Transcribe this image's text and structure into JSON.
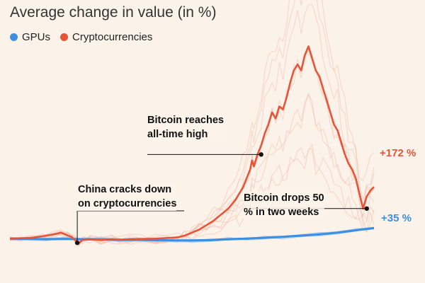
{
  "colors": {
    "gpus": "#3d8fe0",
    "crypto": "#e8543a",
    "crypto_bg": "#f3b8a6",
    "gpu_bg": "#a9c9ea"
  },
  "chart_data": {
    "type": "line",
    "title": "Average change in value (in %)",
    "legend": [
      {
        "name": "GPUs"
      },
      {
        "name": "Cryptocurrencies"
      }
    ],
    "series": [
      {
        "name": "GPUs",
        "x": [
          0,
          5,
          10,
          15,
          20,
          25,
          30,
          35,
          40,
          45,
          50,
          55,
          60,
          65,
          70,
          75,
          80,
          85,
          90,
          95,
          100
        ],
        "y": [
          0,
          -1,
          -2,
          -1,
          -2,
          -3,
          -4,
          -4,
          -5,
          -6,
          -6,
          -5,
          -2,
          0,
          3,
          6,
          10,
          14,
          20,
          28,
          35
        ]
      },
      {
        "name": "Cryptocurrencies",
        "x": [
          0,
          3,
          6,
          9,
          12,
          14,
          16,
          17,
          18,
          19,
          20,
          22,
          25,
          28,
          30,
          33,
          36,
          40,
          43,
          46,
          48,
          50,
          52,
          54,
          56,
          58,
          60,
          62,
          63,
          64,
          65,
          66,
          66.5,
          67,
          68,
          69,
          70,
          71,
          72,
          73,
          74,
          75,
          76,
          77,
          78,
          79,
          80,
          81,
          82,
          83,
          84,
          85,
          86,
          87,
          88,
          89,
          90,
          91,
          92,
          93,
          94,
          95,
          96,
          97,
          98,
          99,
          100
        ],
        "y": [
          0,
          1,
          3,
          8,
          14,
          20,
          10,
          5,
          -6,
          -14,
          -4,
          -2,
          -5,
          -2,
          -4,
          -2,
          -1,
          0,
          2,
          4,
          10,
          20,
          30,
          45,
          60,
          80,
          100,
          130,
          150,
          170,
          200,
          230,
          260,
          240,
          280,
          310,
          350,
          380,
          420,
          400,
          440,
          430,
          470,
          520,
          560,
          580,
          560,
          610,
          640,
          600,
          560,
          540,
          500,
          460,
          420,
          380,
          360,
          320,
          280,
          250,
          230,
          200,
          150,
          100,
          140,
          160,
          172
        ]
      }
    ],
    "annotations": [
      {
        "text": "Bitcoin reaches all-time high",
        "lines": [
          "Bitcoin reaches",
          "all-time high"
        ],
        "x": 69,
        "y": 280
      },
      {
        "text": "China cracks down on cryptocurrencies",
        "lines": [
          "China cracks down",
          "on cryptocurrencies"
        ],
        "x": 18.5,
        "y": -14
      },
      {
        "text": "Bitcoin drops 50 % in two weeks",
        "lines": [
          "Bitcoin drops 50",
          "% in two weeks"
        ],
        "x": 98,
        "y": 100
      }
    ],
    "end_labels": {
      "crypto": "+172 %",
      "gpus": "+35 %"
    },
    "xlim": [
      0,
      100
    ],
    "ylim": [
      -30,
      700
    ],
    "grid": false
  }
}
